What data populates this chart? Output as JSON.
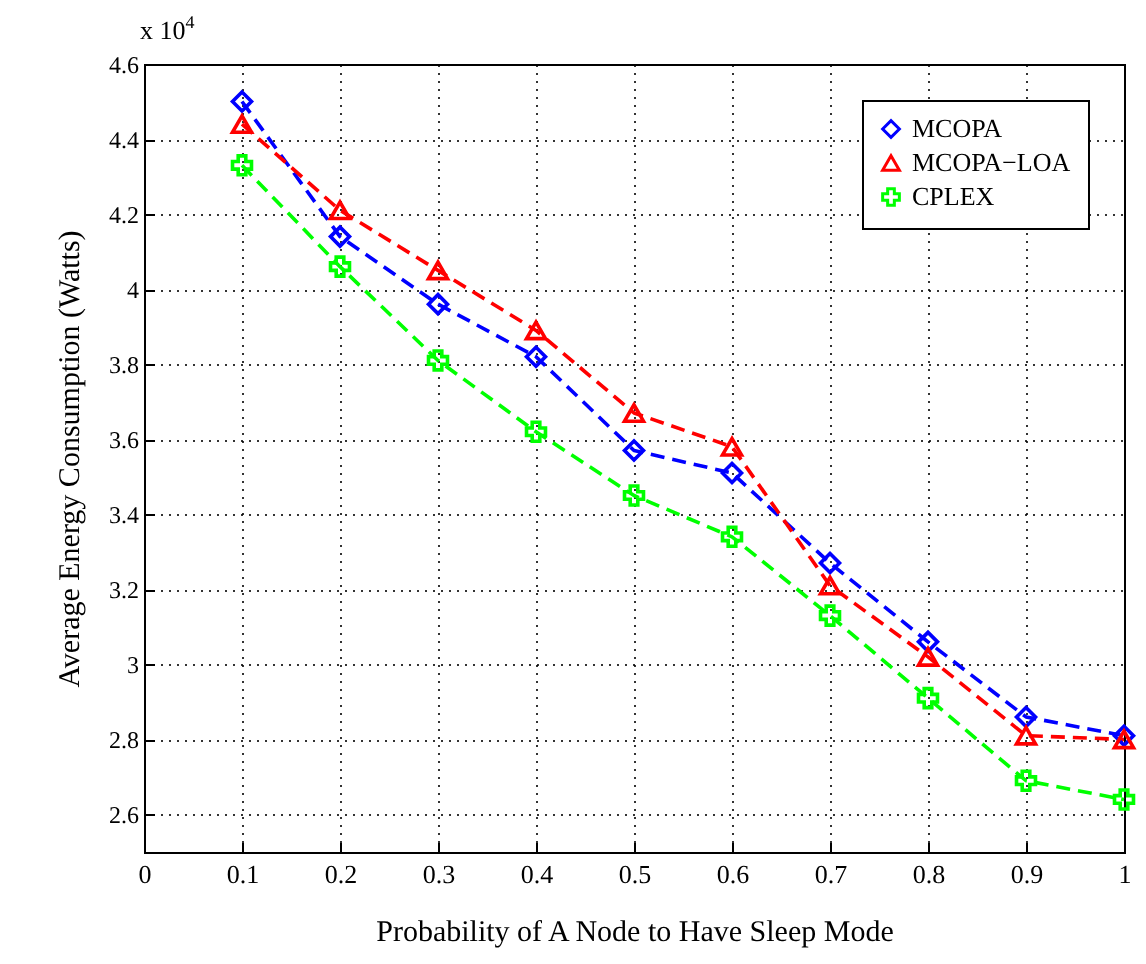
{
  "chart_data": {
    "type": "line",
    "xlabel": "Probability of A Node to Have Sleep Mode",
    "ylabel": "Average Energy Consumption (Watts)",
    "annotations": [
      "x 10$^{4}$"
    ],
    "x": [
      0.1,
      0.2,
      0.3,
      0.4,
      0.5,
      0.6,
      0.7,
      0.8,
      0.9,
      1.0
    ],
    "series": [
      {
        "name": "MCOPA",
        "color": "#0000ff",
        "marker": "diamond",
        "values": [
          4.5,
          4.14,
          3.96,
          3.82,
          3.57,
          3.51,
          3.27,
          3.06,
          2.86,
          2.81
        ]
      },
      {
        "name": "MCOPA−LOA",
        "color": "#ff0000",
        "marker": "triangle",
        "values": [
          4.44,
          4.21,
          4.05,
          3.89,
          3.67,
          3.58,
          3.21,
          3.02,
          2.81,
          2.8
        ]
      },
      {
        "name": "CPLEX",
        "color": "#00ff00",
        "marker": "cross",
        "values": [
          4.33,
          4.06,
          3.81,
          3.62,
          3.45,
          3.34,
          3.13,
          2.91,
          2.69,
          2.64
        ]
      }
    ],
    "xlim": [
      0,
      1
    ],
    "xticks": [
      0,
      0.1,
      0.2,
      0.3,
      0.4,
      0.5,
      0.6,
      0.7,
      0.8,
      0.9,
      1
    ],
    "ylim": [
      2.5,
      4.6
    ],
    "yticks": [
      2.6,
      2.8,
      3,
      3.2,
      3.4,
      3.6,
      3.8,
      4,
      4.2,
      4.4,
      4.6
    ],
    "grid": true,
    "legend": "top right",
    "line_style": "dashed"
  }
}
